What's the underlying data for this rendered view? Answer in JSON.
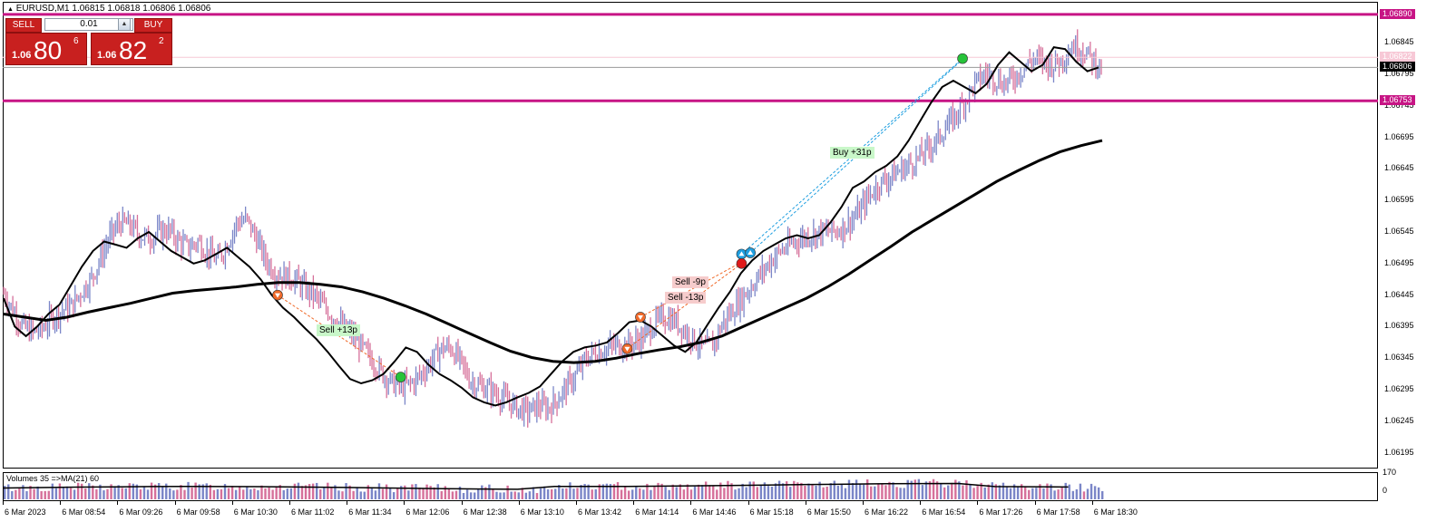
{
  "header": {
    "symbol_title": "EURUSD,M1  1.06815 1.06818 1.06806 1.06806"
  },
  "trade_panel": {
    "sell_label": "SELL",
    "buy_label": "BUY",
    "lot_value": "0.01",
    "sell_prefix": "1.06",
    "sell_big": "80",
    "sell_sup": "6",
    "buy_prefix": "1.06",
    "buy_big": "82",
    "buy_sup": "2",
    "spin_down_icon": "triangle-down-icon",
    "spin_up_icon": "triangle-up-icon"
  },
  "price_axis": {
    "labels": [
      "1.06845",
      "1.06795",
      "1.06745",
      "1.06695",
      "1.06645",
      "1.06595",
      "1.06545",
      "1.06495",
      "1.06445",
      "1.06395",
      "1.06345",
      "1.06295",
      "1.06245",
      "1.06195"
    ],
    "tags": [
      {
        "text": "1.06890",
        "value": 1.0689,
        "bg": "#c71585",
        "fg": "#ffffff"
      },
      {
        "text": "1.06822",
        "value": 1.06822,
        "bg": "#f7c8d6",
        "fg": "#ffffff"
      },
      {
        "text": "1.06806",
        "value": 1.06806,
        "bg": "#000000",
        "fg": "#ffffff"
      },
      {
        "text": "1.06753",
        "value": 1.06753,
        "bg": "#c71585",
        "fg": "#ffffff"
      }
    ]
  },
  "time_axis": {
    "labels": [
      "6 Mar 2023",
      "6 Mar 08:54",
      "6 Mar 09:26",
      "6 Mar 09:58",
      "6 Mar 10:30",
      "6 Mar 11:02",
      "6 Mar 11:34",
      "6 Mar 12:06",
      "6 Mar 12:38",
      "6 Mar 13:10",
      "6 Mar 13:42",
      "6 Mar 14:14",
      "6 Mar 14:46",
      "6 Mar 15:18",
      "6 Mar 15:50",
      "6 Mar 16:22",
      "6 Mar 16:54",
      "6 Mar 17:26",
      "6 Mar 17:58",
      "6 Mar 18:30"
    ]
  },
  "volume": {
    "title": "Volumes 35  =>MA(21) 60",
    "axis_max": "170",
    "axis_min": "0"
  },
  "trade_labels": [
    {
      "text": "Sell +13p",
      "kind": "win"
    },
    {
      "text": "Sell -9p",
      "kind": "loss"
    },
    {
      "text": "Sell -13p",
      "kind": "loss"
    },
    {
      "text": "Buy +31p",
      "kind": "win"
    }
  ],
  "colors": {
    "bull": "#7b86c8",
    "bear": "#d6709a",
    "line": "#000000",
    "level": "#c71585",
    "win_bg": "#c9f7c9",
    "loss_bg": "#f6cccc"
  },
  "chart_data": {
    "type": "line",
    "title": "",
    "ylim": [
      1.0617,
      1.0691
    ],
    "support_resistance": [
      1.0689,
      1.06753
    ],
    "close_series": [
      1.06448,
      1.0642,
      1.06395,
      1.06385,
      1.06392,
      1.0641,
      1.0642,
      1.06428,
      1.0645,
      1.0647,
      1.06505,
      1.0654,
      1.0656,
      1.06555,
      1.0654,
      1.06535,
      1.06545,
      1.06548,
      1.0653,
      1.0652,
      1.0653,
      1.06512,
      1.065,
      1.06525,
      1.0656,
      1.06565,
      1.06535,
      1.065,
      1.0648,
      1.06475,
      1.0647,
      1.06455,
      1.06445,
      1.06425,
      1.0641,
      1.06395,
      1.0638,
      1.0636,
      1.0634,
      1.0632,
      1.06305,
      1.063,
      1.06305,
      1.0632,
      1.0634,
      1.0636,
      1.06362,
      1.0634,
      1.0631,
      1.063,
      1.06295,
      1.06285,
      1.06275,
      1.06265,
      1.0626,
      1.0627,
      1.06265,
      1.0628,
      1.063,
      1.0632,
      1.06345,
      1.06355,
      1.0636,
      1.06365,
      1.06365,
      1.0637,
      1.0638,
      1.064,
      1.0641,
      1.06405,
      1.0639,
      1.06375,
      1.0636,
      1.06365,
      1.064,
      1.0642,
      1.0644,
      1.0646,
      1.0648,
      1.065,
      1.06515,
      1.06525,
      1.06535,
      1.0654,
      1.06545,
      1.06545,
      1.06548,
      1.0656,
      1.06575,
      1.066,
      1.0662,
      1.0663,
      1.0664,
      1.0665,
      1.0666,
      1.06675,
      1.0669,
      1.0671,
      1.0673,
      1.06755,
      1.0678,
      1.06795,
      1.0679,
      1.0678,
      1.0679,
      1.06805,
      1.0682,
      1.06815,
      1.0681,
      1.0682,
      1.0684,
      1.06835,
      1.0682,
      1.06806
    ],
    "fast_ma": [
      1.0644,
      1.06395,
      1.0638,
      1.06395,
      1.06415,
      1.0643,
      1.0646,
      1.0649,
      1.06515,
      1.0653,
      1.06525,
      1.0652,
      1.06535,
      1.06545,
      1.0653,
      1.06515,
      1.06505,
      1.06495,
      1.065,
      1.0651,
      1.0652,
      1.06505,
      1.0649,
      1.0647,
      1.06445,
      1.06425,
      1.0641,
      1.06392,
      1.06375,
      1.06355,
      1.06333,
      1.06312,
      1.06305,
      1.0631,
      1.0632,
      1.0634,
      1.06362,
      1.06355,
      1.06335,
      1.0632,
      1.0631,
      1.06298,
      1.06283,
      1.06275,
      1.0627,
      1.06275,
      1.06283,
      1.0629,
      1.063,
      1.0632,
      1.0634,
      1.06355,
      1.06362,
      1.06365,
      1.0637,
      1.06385,
      1.06402,
      1.06405,
      1.06395,
      1.0638,
      1.06365,
      1.06355,
      1.0637,
      1.06398,
      1.06425,
      1.0645,
      1.0648,
      1.065,
      1.06515,
      1.06525,
      1.06535,
      1.0654,
      1.06535,
      1.0654,
      1.0656,
      1.06585,
      1.06615,
      1.06625,
      1.0664,
      1.0665,
      1.06665,
      1.0669,
      1.0672,
      1.0675,
      1.06775,
      1.06785,
      1.06775,
      1.06765,
      1.0678,
      1.0681,
      1.0683,
      1.06815,
      1.068,
      1.0681,
      1.06838,
      1.06835,
      1.06815,
      1.068,
      1.06806
    ],
    "slow_ma": [
      1.06415,
      1.0641,
      1.06405,
      1.0641,
      1.06418,
      1.06425,
      1.06432,
      1.0644,
      1.06448,
      1.06452,
      1.06455,
      1.06458,
      1.06462,
      1.06465,
      1.06465,
      1.06462,
      1.06458,
      1.0645,
      1.0644,
      1.06428,
      1.06415,
      1.064,
      1.06385,
      1.0637,
      1.06356,
      1.06346,
      1.0634,
      1.06338,
      1.0634,
      1.06345,
      1.06352,
      1.06358,
      1.06363,
      1.0637,
      1.0638,
      1.06395,
      1.0641,
      1.06425,
      1.0644,
      1.06458,
      1.06478,
      1.065,
      1.06522,
      1.06545,
      1.06565,
      1.06585,
      1.06605,
      1.06625,
      1.06642,
      1.06658,
      1.06672,
      1.06682,
      1.0669
    ]
  }
}
